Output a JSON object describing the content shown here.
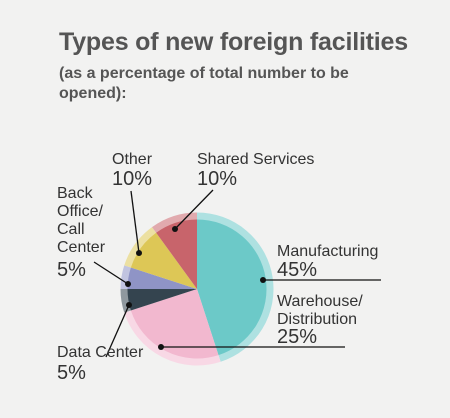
{
  "header": {
    "title": "Types of new foreign facilities",
    "subtitle": "(as a percentage of total number to be opened):"
  },
  "colors": {
    "background": "#f2f2f1",
    "text": "#333333",
    "title_text": "#555555",
    "leader_line": "#111111"
  },
  "chart_data": {
    "type": "pie",
    "title": "Types of new foreign facilities",
    "subtitle": "(as a percentage of total number to be opened):",
    "unit": "%",
    "slices": [
      {
        "name": "Manufacturing",
        "value": 45,
        "label": "45%",
        "color": "#6cc9c8"
      },
      {
        "name": "Warehouse/ Distribution",
        "value": 25,
        "label": "25%",
        "color": "#f2b8cf"
      },
      {
        "name": "Data Center",
        "value": 5,
        "label": "5%",
        "color": "#34444f"
      },
      {
        "name": "Back Office/ Call Center",
        "value": 5,
        "label": "5%",
        "color": "#8f94c6"
      },
      {
        "name": "Other",
        "value": 10,
        "label": "10%",
        "color": "#ddc756"
      },
      {
        "name": "Shared Services",
        "value": 10,
        "label": "10%",
        "color": "#c8646b"
      }
    ]
  }
}
